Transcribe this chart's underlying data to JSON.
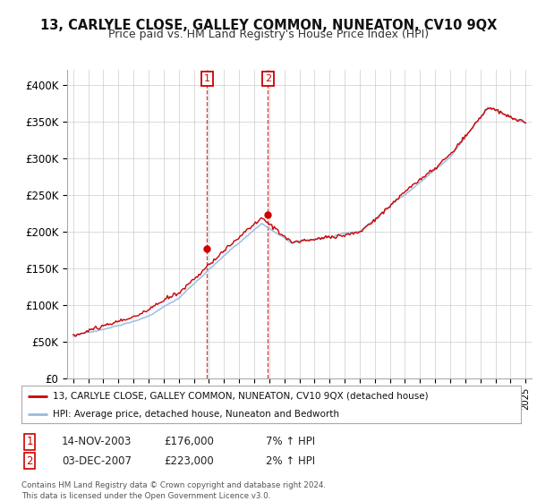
{
  "title": "13, CARLYLE CLOSE, GALLEY COMMON, NUNEATON, CV10 9QX",
  "subtitle": "Price paid vs. HM Land Registry's House Price Index (HPI)",
  "ylim": [
    0,
    420000
  ],
  "yticks": [
    0,
    50000,
    100000,
    150000,
    200000,
    250000,
    300000,
    350000,
    400000
  ],
  "ytick_labels": [
    "£0",
    "£50K",
    "£100K",
    "£150K",
    "£200K",
    "£250K",
    "£300K",
    "£350K",
    "£400K"
  ],
  "sale1_date_num": 2003.87,
  "sale1_price": 176000,
  "sale2_date_num": 2007.92,
  "sale2_price": 223000,
  "line_color_price": "#cc0000",
  "line_color_hpi": "#99bbdd",
  "shade_color": "#ddeeff",
  "legend1_text": "13, CARLYLE CLOSE, GALLEY COMMON, NUNEATON, CV10 9QX (detached house)",
  "legend2_text": "HPI: Average price, detached house, Nuneaton and Bedworth",
  "table_row1": [
    "1",
    "14-NOV-2003",
    "£176,000",
    "7% ↑ HPI"
  ],
  "table_row2": [
    "2",
    "03-DEC-2007",
    "£223,000",
    "2% ↑ HPI"
  ],
  "footnote": "Contains HM Land Registry data © Crown copyright and database right 2024.\nThis data is licensed under the Open Government Licence v3.0.",
  "background_color": "#ffffff",
  "grid_color": "#cccccc"
}
